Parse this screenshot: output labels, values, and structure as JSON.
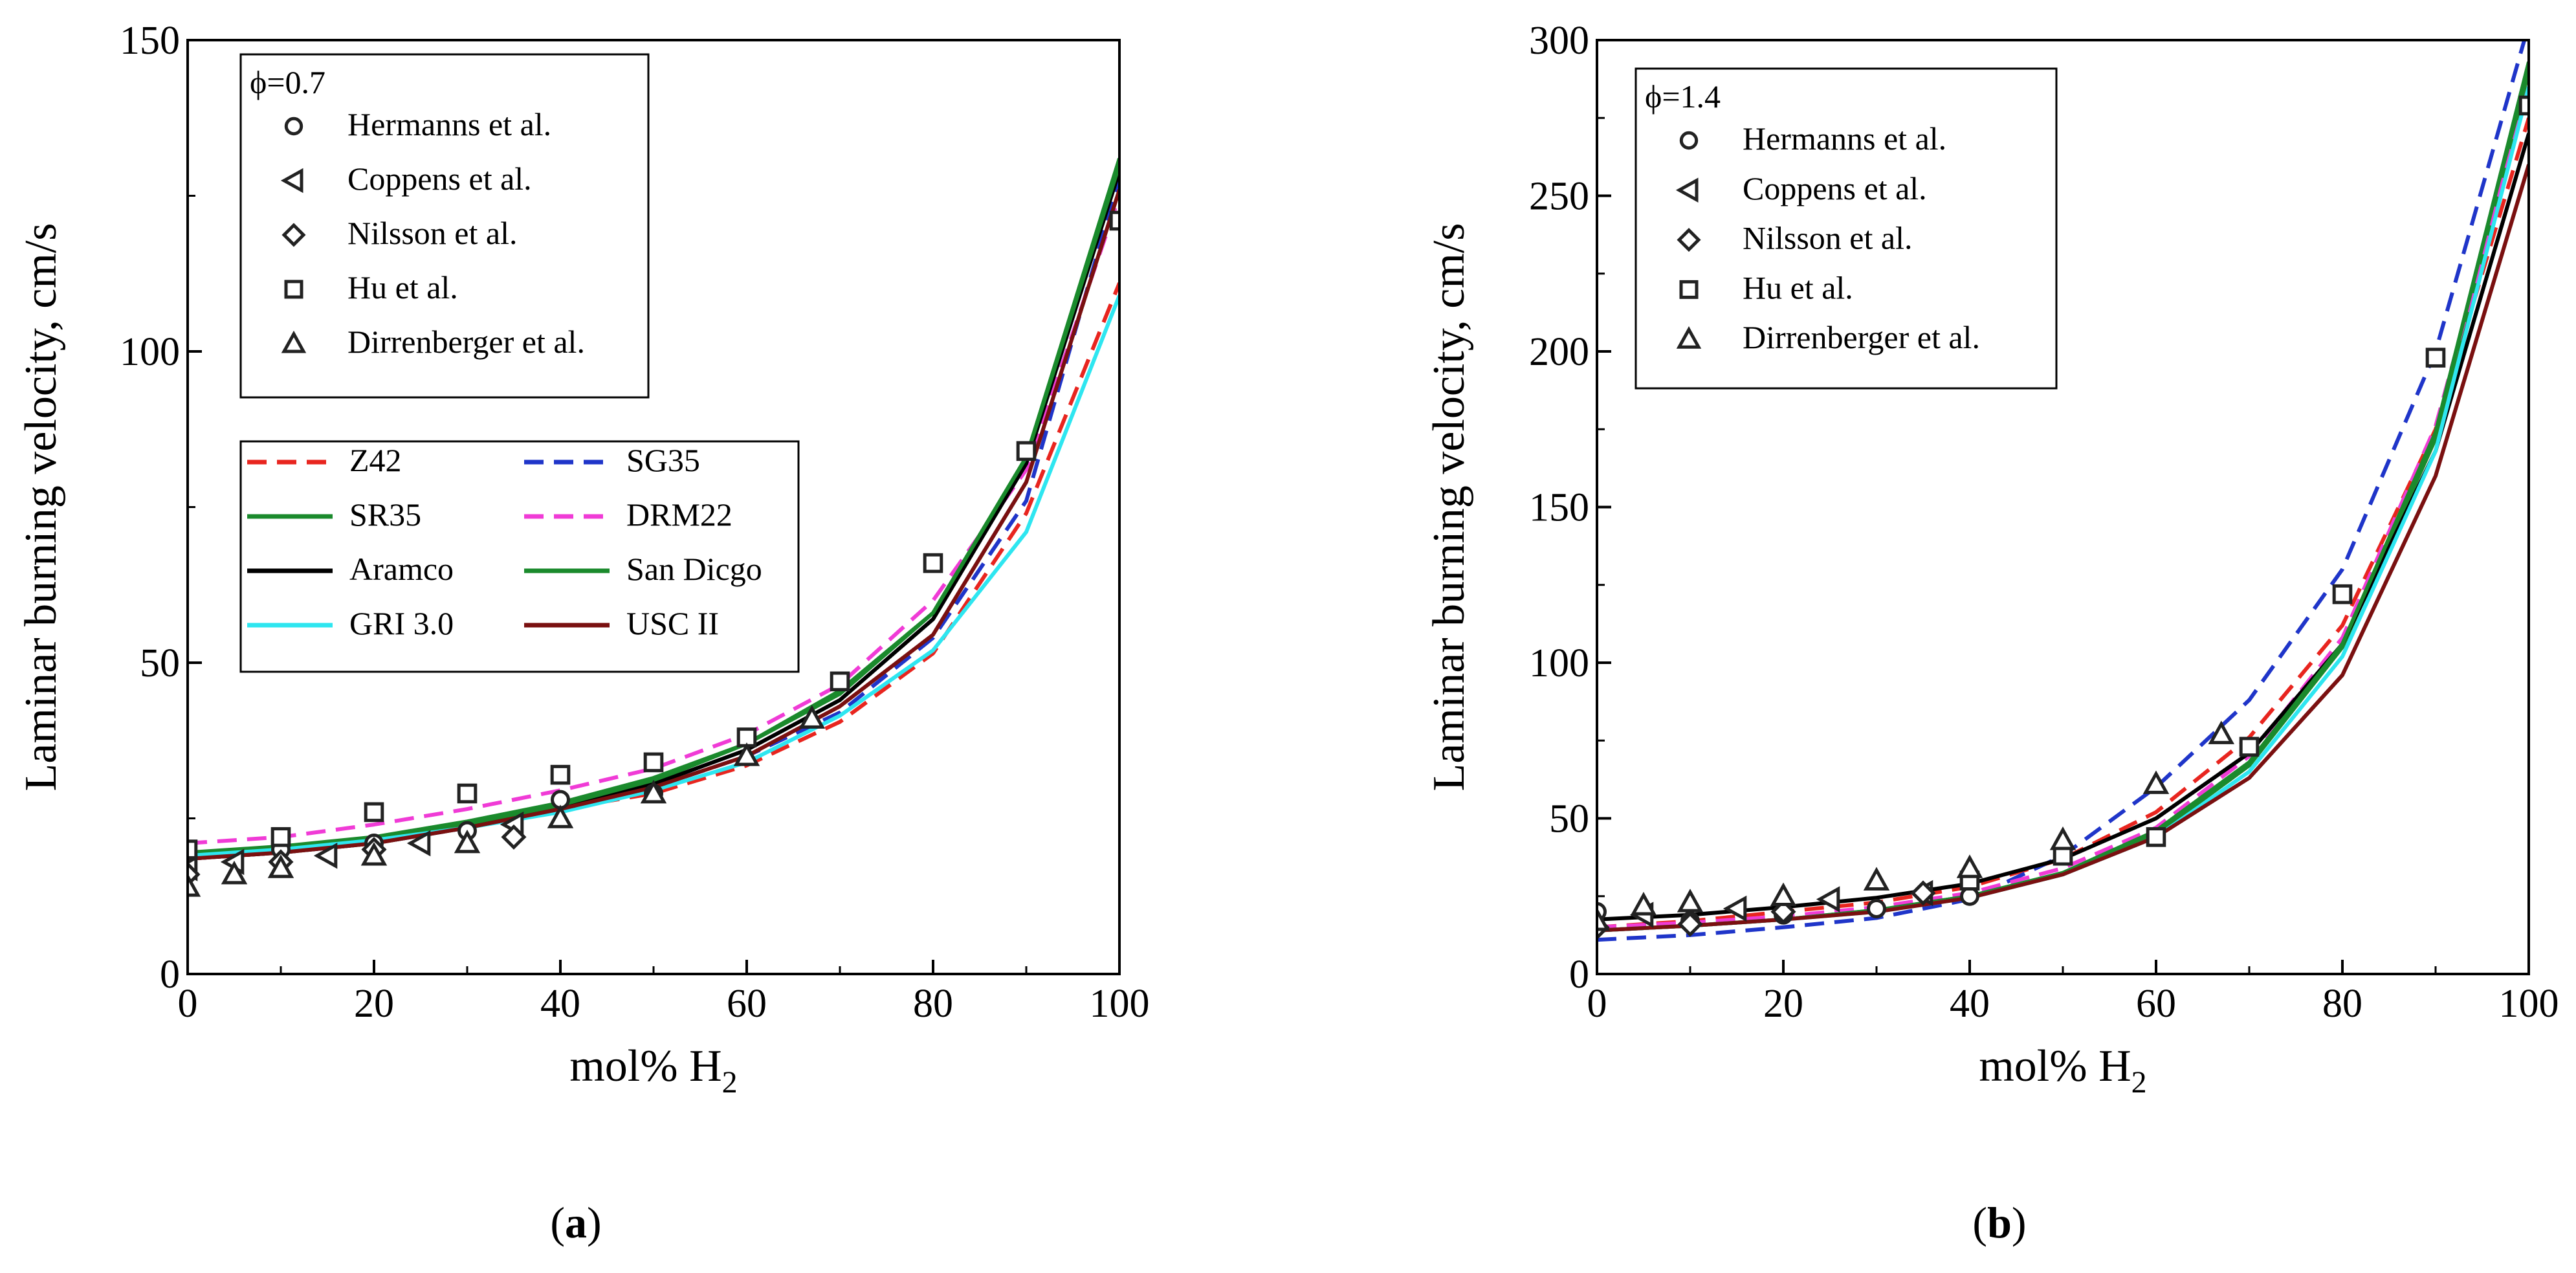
{
  "chart_data": [
    {
      "type": "line",
      "panel": "a",
      "panel_label_open": "(",
      "panel_label_letter": "a",
      "panel_label_close": ")",
      "phi": "ϕ=0.7",
      "xlabel": "mol% H",
      "xlabel_sub": "2",
      "ylabel": "Laminar burning velocity, cm/s",
      "xlim": [
        0,
        100
      ],
      "ylim": [
        0,
        150
      ],
      "xticks": [
        0,
        20,
        40,
        60,
        80,
        100
      ],
      "yticks": [
        0,
        50,
        100,
        150
      ],
      "model_x": [
        0,
        10,
        20,
        30,
        40,
        50,
        60,
        70,
        80,
        90,
        100
      ],
      "models": [
        {
          "name": "Z42",
          "color": "#e8251f",
          "dash": "dashed",
          "values": [
            18.5,
            19.5,
            21.5,
            24,
            26.5,
            29,
            33.5,
            40.5,
            51.5,
            74,
            111
          ]
        },
        {
          "name": "SG35",
          "color": "#1f35c9",
          "dash": "dashed",
          "values": [
            18.5,
            19.5,
            21,
            23.5,
            26.5,
            30,
            35,
            42,
            54,
            76,
            128
          ]
        },
        {
          "name": "SR35",
          "color": "#1a8a2c",
          "dash": "solid",
          "values": [
            19,
            20,
            21.5,
            24,
            27,
            31,
            37,
            45,
            58,
            83,
            131
          ]
        },
        {
          "name": "DRM22",
          "color": "#f03bd6",
          "dash": "dashed",
          "values": [
            21,
            22,
            24,
            26.5,
            29.5,
            33,
            38.5,
            46.5,
            60,
            81,
            125
          ]
        },
        {
          "name": "Aramco",
          "color": "#000000",
          "dash": "solid",
          "values": [
            18.5,
            19.5,
            21,
            23.5,
            26.5,
            30.5,
            36,
            44,
            57,
            82,
            129
          ]
        },
        {
          "name": "San Dicgo",
          "color": "#1a8a2c",
          "dash": "solid",
          "values": [
            19.5,
            20.5,
            22,
            24.5,
            27.5,
            31.5,
            37,
            45.5,
            58,
            83,
            130
          ]
        },
        {
          "name": "GRI 3.0",
          "color": "#2ee6f0",
          "dash": "solid",
          "values": [
            19,
            20,
            21.5,
            23.5,
            26,
            29.5,
            34,
            41.5,
            52,
            71,
            109
          ]
        },
        {
          "name": "USC II",
          "color": "#7a1010",
          "dash": "solid",
          "values": [
            18.5,
            19.5,
            21,
            23.5,
            26.5,
            30,
            35,
            43,
            54.5,
            79,
            126
          ]
        }
      ],
      "experiments": [
        {
          "name": "Hermanns et al.",
          "marker": "circle",
          "points": [
            [
              0,
              20
            ],
            [
              10,
              20
            ],
            [
              20,
              21
            ],
            [
              30,
              23
            ],
            [
              40,
              28
            ],
            [
              50,
              29
            ]
          ]
        },
        {
          "name": "Coppens et al.",
          "marker": "triangle-left",
          "points": [
            [
              0,
              17
            ],
            [
              5,
              18
            ],
            [
              15,
              19
            ],
            [
              25,
              21
            ],
            [
              35,
              24
            ]
          ]
        },
        {
          "name": "Nilsson et al.",
          "marker": "diamond",
          "points": [
            [
              0,
              16
            ],
            [
              10,
              18
            ],
            [
              20,
              20
            ],
            [
              35,
              22
            ]
          ]
        },
        {
          "name": "Hu et al.",
          "marker": "square",
          "points": [
            [
              0,
              20
            ],
            [
              10,
              22
            ],
            [
              20,
              26
            ],
            [
              30,
              29
            ],
            [
              40,
              32
            ],
            [
              50,
              34
            ],
            [
              60,
              38
            ],
            [
              70,
              47
            ],
            [
              80,
              66
            ],
            [
              90,
              84
            ],
            [
              100,
              121
            ]
          ]
        },
        {
          "name": "Dirrenberger et al.",
          "marker": "triangle-up",
          "points": [
            [
              0,
              14
            ],
            [
              5,
              16
            ],
            [
              10,
              17
            ],
            [
              20,
              19
            ],
            [
              30,
              21
            ],
            [
              40,
              25
            ],
            [
              50,
              29
            ],
            [
              60,
              35
            ],
            [
              67,
              41
            ]
          ]
        }
      ]
    },
    {
      "type": "line",
      "panel": "b",
      "panel_label_open": "(",
      "panel_label_letter": "b",
      "panel_label_close": ")",
      "phi": "ϕ=1.4",
      "xlabel": "mol% H",
      "xlabel_sub": "2",
      "ylabel": "Laminar burning velocity, cm/s",
      "xlim": [
        0,
        100
      ],
      "ylim": [
        0,
        300
      ],
      "xticks": [
        0,
        20,
        40,
        60,
        80,
        100
      ],
      "yticks": [
        0,
        50,
        100,
        150,
        200,
        250,
        300
      ],
      "model_x": [
        0,
        10,
        20,
        30,
        40,
        50,
        60,
        70,
        80,
        90,
        100
      ],
      "models": [
        {
          "name": "Z42",
          "color": "#e8251f",
          "dash": "dashed",
          "values": [
            15,
            17,
            20,
            23,
            28,
            37,
            52,
            76,
            112,
            175,
            275
          ]
        },
        {
          "name": "SG35",
          "color": "#1f35c9",
          "dash": "dashed",
          "values": [
            11,
            12.5,
            15,
            18,
            24,
            38,
            60,
            88,
            130,
            200,
            305
          ]
        },
        {
          "name": "SR35",
          "color": "#1a8a2c",
          "dash": "solid",
          "values": [
            14,
            15.5,
            17.5,
            20.5,
            25,
            32,
            45,
            67,
            105,
            172,
            290
          ]
        },
        {
          "name": "DRM22",
          "color": "#f03bd6",
          "dash": "dashed",
          "values": [
            15,
            16.5,
            18.5,
            21.5,
            26,
            34,
            47,
            70,
            108,
            176,
            285
          ]
        },
        {
          "name": "Aramco",
          "color": "#000000",
          "dash": "solid",
          "values": [
            17.5,
            19,
            21.5,
            24.5,
            29,
            37,
            50,
            71,
            106,
            168,
            270
          ]
        },
        {
          "name": "San Dicgo",
          "color": "#1a8a2c",
          "dash": "solid",
          "values": [
            14,
            15.5,
            17.5,
            20.5,
            25,
            32.5,
            46,
            68,
            106,
            174,
            293
          ]
        },
        {
          "name": "GRI 3.0",
          "color": "#2ee6f0",
          "dash": "solid",
          "values": [
            14,
            15.5,
            17.5,
            20,
            24.5,
            32,
            44,
            65,
            102,
            168,
            285
          ]
        },
        {
          "name": "USC II",
          "color": "#7a1010",
          "dash": "solid",
          "values": [
            14,
            15.5,
            17.5,
            20,
            24.5,
            32,
            44,
            63,
            96,
            160,
            260
          ]
        }
      ],
      "experiments": [
        {
          "name": "Hermanns et al.",
          "marker": "circle",
          "points": [
            [
              0,
              20
            ],
            [
              10,
              17
            ],
            [
              20,
              19
            ],
            [
              30,
              21
            ],
            [
              40,
              25
            ]
          ]
        },
        {
          "name": "Coppens et al.",
          "marker": "triangle-left",
          "points": [
            [
              5,
              19
            ],
            [
              15,
              21
            ],
            [
              25,
              24
            ],
            [
              35,
              26
            ]
          ]
        },
        {
          "name": "Nilsson et al.",
          "marker": "diamond",
          "points": [
            [
              0,
              15
            ],
            [
              10,
              16
            ],
            [
              20,
              20
            ],
            [
              35,
              26
            ]
          ]
        },
        {
          "name": "Hu et al.",
          "marker": "square",
          "points": [
            [
              40,
              30
            ],
            [
              50,
              38
            ],
            [
              60,
              44
            ],
            [
              70,
              73
            ],
            [
              80,
              122
            ],
            [
              90,
              198
            ],
            [
              100,
              279
            ]
          ]
        },
        {
          "name": "Dirrenberger et al.",
          "marker": "triangle-up",
          "points": [
            [
              0,
              17
            ],
            [
              5,
              22
            ],
            [
              10,
              23
            ],
            [
              20,
              25
            ],
            [
              30,
              30
            ],
            [
              40,
              34
            ],
            [
              50,
              43
            ],
            [
              60,
              61
            ],
            [
              67,
              77
            ]
          ]
        }
      ]
    }
  ]
}
